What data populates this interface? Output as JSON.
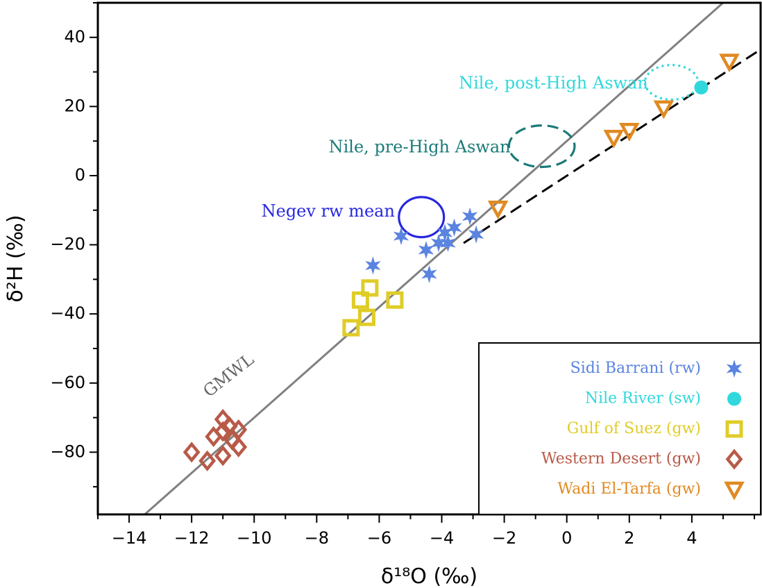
{
  "chart_data": {
    "type": "scatter",
    "xlabel": "δ¹⁸O (‰)",
    "ylabel": "δ²H (‰)",
    "xlim": [
      -15,
      6.2
    ],
    "ylim": [
      -98,
      50
    ],
    "xticks": [
      -14,
      -12,
      -10,
      -8,
      -6,
      -4,
      -2,
      0,
      2,
      4
    ],
    "yticks": [
      -80,
      -60,
      -40,
      -20,
      0,
      20,
      40
    ],
    "xtick_labels": [
      "−14",
      "−12",
      "−10",
      "−8",
      "−6",
      "−4",
      "−2",
      "0",
      "2",
      "4"
    ],
    "ytick_labels": [
      "−80",
      "−60",
      "−40",
      "−20",
      "0",
      "20",
      "40"
    ],
    "grid": false,
    "legend_position": "bottom-right",
    "series": [
      {
        "name": "Sidi Barrani (rw)",
        "marker": "star",
        "color": "#5b84e0",
        "points": [
          [
            -5.3,
            -17.5
          ],
          [
            -6.2,
            -26
          ],
          [
            -4.5,
            -21.5
          ],
          [
            -4.4,
            -28.5
          ],
          [
            -4.1,
            -19.5
          ],
          [
            -3.9,
            -16.5
          ],
          [
            -3.8,
            -19.5
          ],
          [
            -3.6,
            -15
          ],
          [
            -3.1,
            -11.8
          ],
          [
            -2.9,
            -17
          ]
        ]
      },
      {
        "name": "Nile River (sw)",
        "marker": "circle",
        "color": "#30d8dc",
        "points": [
          [
            4.3,
            25.5
          ]
        ]
      },
      {
        "name": "Gulf of Suez (gw)",
        "marker": "square",
        "color": "#e0cc28",
        "points": [
          [
            -6.9,
            -44
          ],
          [
            -6.6,
            -36
          ],
          [
            -6.4,
            -41
          ],
          [
            -6.3,
            -32.5
          ],
          [
            -5.5,
            -36
          ]
        ]
      },
      {
        "name": "Western Desert (gw)",
        "marker": "diamond",
        "color": "#b85a48",
        "points": [
          [
            -12.0,
            -80
          ],
          [
            -11.5,
            -82.5
          ],
          [
            -11.3,
            -75.5
          ],
          [
            -11.0,
            -70.5
          ],
          [
            -11.0,
            -81
          ],
          [
            -10.8,
            -72.5
          ],
          [
            -10.7,
            -76.5
          ],
          [
            -10.5,
            -78.5
          ],
          [
            -10.5,
            -73.5
          ],
          [
            -11.0,
            -74
          ]
        ]
      },
      {
        "name": "Wadi El-Tarfa (gw)",
        "marker": "triangle-down",
        "color": "#e08a22",
        "points": [
          [
            -2.2,
            -9.5
          ],
          [
            1.5,
            11
          ],
          [
            2.0,
            13
          ],
          [
            3.1,
            19.5
          ],
          [
            5.2,
            33
          ]
        ]
      }
    ],
    "lines": [
      {
        "name": "GMWL",
        "style": "solid",
        "color": "#808080",
        "slope": 8,
        "intercept": 10
      },
      {
        "name": "",
        "style": "dashed",
        "color": "#000000",
        "points": [
          [
            -3.3,
            -19.5
          ],
          [
            6.2,
            36.5
          ]
        ]
      }
    ],
    "ellipses": [
      {
        "label": "Negev rw mean",
        "color": "#2828e0",
        "style": "solid",
        "cx": -4.65,
        "cy": -12,
        "rx": 0.72,
        "ry": 5.8
      },
      {
        "label": "Nile, pre-High Aswan",
        "color": "#1a7a78",
        "style": "dashed",
        "cx": -0.8,
        "cy": 8.5,
        "rx": 1.05,
        "ry": 6.0
      },
      {
        "label": "Nile, post-High Aswan",
        "color": "#30d8dc",
        "style": "dotted",
        "cx": 3.35,
        "cy": 27,
        "rx": 0.85,
        "ry": 5.0
      }
    ],
    "annotations": [
      {
        "text": "GMWL",
        "x": -10.8,
        "y": -58,
        "color": "#666666",
        "rotate": -38
      },
      {
        "text": "Negev rw mean",
        "x": -5.5,
        "y": -10.5,
        "color": "#2828e0"
      },
      {
        "text": "Nile, pre-High Aswan",
        "x": -1.8,
        "y": 8,
        "color": "#1a7a78"
      },
      {
        "text": "Nile, post-High Aswan",
        "x": 2.6,
        "y": 26.5,
        "color": "#30d8dc"
      }
    ]
  }
}
